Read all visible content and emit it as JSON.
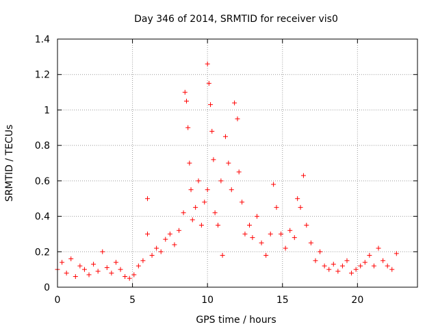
{
  "chart_data": {
    "type": "scatter",
    "title": "Day 346 of 2014, SRMTID for receiver vis0",
    "xlabel": "GPS time / hours",
    "ylabel": "SRMTID / TECUs",
    "xlim": [
      0,
      24
    ],
    "ylim": [
      0,
      1.4
    ],
    "grid": true,
    "marker": "+",
    "color": "#ff0000",
    "x_ticks": [
      0,
      5,
      10,
      15,
      20
    ],
    "x_tick_labels": [
      "0",
      "5",
      "10",
      "15",
      "20"
    ],
    "y_ticks": [
      0,
      0.2,
      0.4,
      0.6,
      0.8,
      1,
      1.2,
      1.4
    ],
    "y_tick_labels": [
      "0",
      "0.2",
      "0.4",
      "0.6",
      "0.8",
      "1",
      "1.2",
      "1.4"
    ],
    "series": [
      {
        "name": "vis0",
        "points": [
          [
            0.0,
            0.1
          ],
          [
            0.3,
            0.14
          ],
          [
            0.6,
            0.08
          ],
          [
            0.9,
            0.16
          ],
          [
            1.2,
            0.06
          ],
          [
            1.5,
            0.12
          ],
          [
            1.8,
            0.1
          ],
          [
            2.1,
            0.07
          ],
          [
            2.4,
            0.13
          ],
          [
            2.7,
            0.09
          ],
          [
            3.0,
            0.2
          ],
          [
            3.3,
            0.11
          ],
          [
            3.6,
            0.08
          ],
          [
            3.9,
            0.14
          ],
          [
            4.2,
            0.1
          ],
          [
            4.5,
            0.06
          ],
          [
            4.8,
            0.05
          ],
          [
            5.1,
            0.07
          ],
          [
            5.4,
            0.12
          ],
          [
            5.7,
            0.15
          ],
          [
            6.0,
            0.5
          ],
          [
            6.0,
            0.3
          ],
          [
            6.3,
            0.18
          ],
          [
            6.6,
            0.22
          ],
          [
            6.9,
            0.2
          ],
          [
            7.2,
            0.27
          ],
          [
            7.5,
            0.3
          ],
          [
            7.8,
            0.24
          ],
          [
            8.1,
            0.32
          ],
          [
            8.4,
            0.42
          ],
          [
            8.5,
            1.1
          ],
          [
            8.6,
            1.05
          ],
          [
            8.7,
            0.9
          ],
          [
            8.8,
            0.7
          ],
          [
            8.9,
            0.55
          ],
          [
            9.0,
            0.38
          ],
          [
            9.2,
            0.45
          ],
          [
            9.4,
            0.6
          ],
          [
            9.6,
            0.35
          ],
          [
            9.8,
            0.48
          ],
          [
            10.0,
            0.55
          ],
          [
            10.0,
            1.26
          ],
          [
            10.1,
            1.15
          ],
          [
            10.2,
            1.03
          ],
          [
            10.3,
            0.88
          ],
          [
            10.4,
            0.72
          ],
          [
            10.5,
            0.42
          ],
          [
            10.7,
            0.35
          ],
          [
            10.9,
            0.6
          ],
          [
            11.0,
            0.18
          ],
          [
            11.2,
            0.85
          ],
          [
            11.4,
            0.7
          ],
          [
            11.6,
            0.55
          ],
          [
            11.8,
            1.04
          ],
          [
            12.0,
            0.95
          ],
          [
            12.1,
            0.65
          ],
          [
            12.3,
            0.48
          ],
          [
            12.5,
            0.3
          ],
          [
            12.8,
            0.35
          ],
          [
            13.0,
            0.28
          ],
          [
            13.3,
            0.4
          ],
          [
            13.6,
            0.25
          ],
          [
            13.9,
            0.18
          ],
          [
            14.2,
            0.3
          ],
          [
            14.4,
            0.58
          ],
          [
            14.6,
            0.45
          ],
          [
            14.9,
            0.3
          ],
          [
            15.2,
            0.22
          ],
          [
            15.5,
            0.32
          ],
          [
            15.8,
            0.28
          ],
          [
            16.0,
            0.5
          ],
          [
            16.2,
            0.45
          ],
          [
            16.4,
            0.63
          ],
          [
            16.6,
            0.35
          ],
          [
            16.9,
            0.25
          ],
          [
            17.2,
            0.15
          ],
          [
            17.5,
            0.2
          ],
          [
            17.8,
            0.12
          ],
          [
            18.1,
            0.1
          ],
          [
            18.4,
            0.13
          ],
          [
            18.7,
            0.09
          ],
          [
            19.0,
            0.12
          ],
          [
            19.3,
            0.15
          ],
          [
            19.6,
            0.08
          ],
          [
            19.9,
            0.1
          ],
          [
            20.2,
            0.12
          ],
          [
            20.5,
            0.14
          ],
          [
            20.8,
            0.18
          ],
          [
            21.1,
            0.12
          ],
          [
            21.4,
            0.22
          ],
          [
            21.7,
            0.15
          ],
          [
            22.0,
            0.12
          ],
          [
            22.3,
            0.1
          ],
          [
            22.6,
            0.19
          ]
        ]
      }
    ]
  }
}
